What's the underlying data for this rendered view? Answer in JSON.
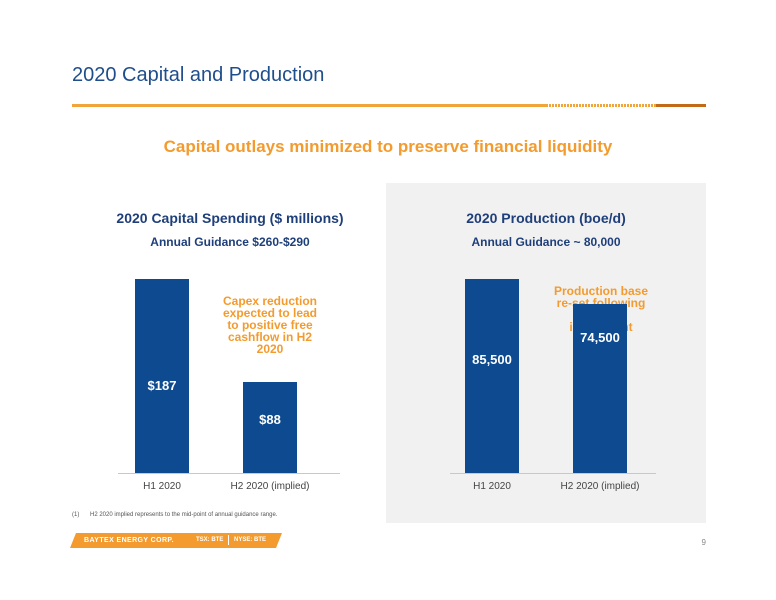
{
  "slide": {
    "title": "2020 Capital and Production",
    "subtitle": "Capital outlays minimized to preserve financial liquidity",
    "footnote_marker": "(1)",
    "footnote": "H2 2020 implied represents to the mid-point of annual guidance range.",
    "company": "BAYTEX ENERGY CORP.",
    "tsx": "TSX: BTE",
    "nyse": "NYSE: BTE",
    "page_number": "9"
  },
  "colors": {
    "title_blue": "#1f4e8c",
    "bar_blue": "#0d4a8f",
    "accent_orange": "#f39b2e",
    "panel_gray": "#f1f1f1"
  },
  "chart_data": [
    {
      "type": "bar",
      "title": "2020 Capital Spending ($ millions)",
      "guidance": "Annual Guidance $260-$290",
      "categories": [
        "H1 2020",
        "H2 2020 (implied)"
      ],
      "values": [
        187,
        88
      ],
      "value_labels": [
        "$187",
        "$88"
      ],
      "annotation": "Capex reduction expected to lead to positive free cashflow in H2 2020",
      "ylim": [
        0,
        187
      ]
    },
    {
      "type": "bar",
      "title": "2020 Production (boe/d)",
      "guidance": "Annual Guidance ~ 80,000",
      "categories": [
        "H1 2020",
        "H2 2020 (implied)"
      ],
      "values": [
        85500,
        74500
      ],
      "value_labels": [
        "85,500",
        "74,500"
      ],
      "annotation": "Production base re-set following limited investment",
      "ylim": [
        0,
        85500
      ]
    }
  ]
}
